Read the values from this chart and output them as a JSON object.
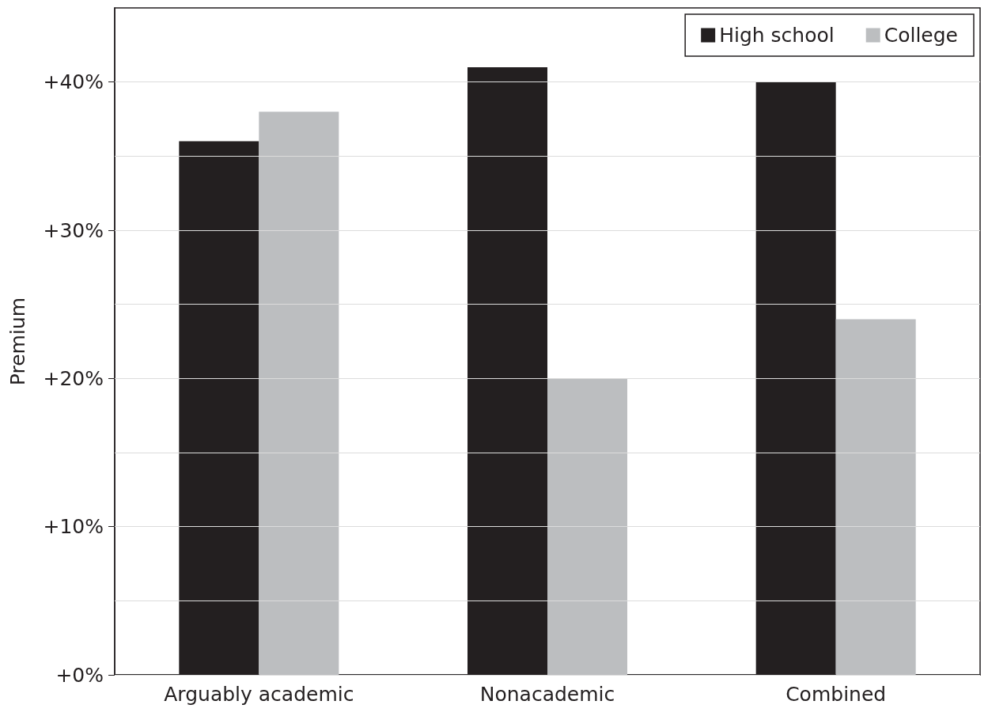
{
  "chart_data": {
    "type": "bar",
    "ylabel": "Premium",
    "categories": [
      "Arguably academic",
      "Nonacademic",
      "Combined"
    ],
    "series": [
      {
        "name": "High school",
        "color": "#231f20",
        "values": [
          36,
          41,
          40
        ]
      },
      {
        "name": "College",
        "color": "#bcbec0",
        "values": [
          38,
          20,
          24
        ]
      }
    ],
    "ylim": [
      0,
      45
    ],
    "yticks": [
      {
        "value": 0,
        "label": "+0%"
      },
      {
        "value": 5,
        "label": null
      },
      {
        "value": 10,
        "label": "+10%"
      },
      {
        "value": 15,
        "label": null
      },
      {
        "value": 20,
        "label": "+20%"
      },
      {
        "value": 25,
        "label": null
      },
      {
        "value": 30,
        "label": "+30%"
      },
      {
        "value": 35,
        "label": null
      },
      {
        "value": 40,
        "label": "+40%"
      }
    ],
    "grid": "y",
    "legend": "top right"
  }
}
